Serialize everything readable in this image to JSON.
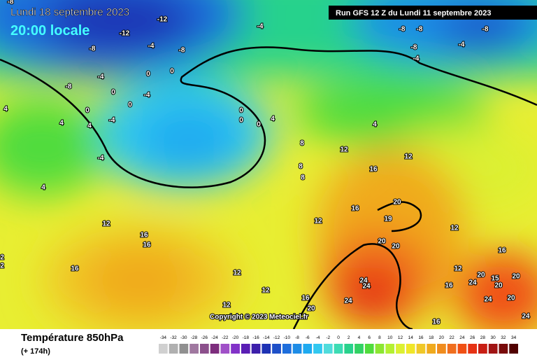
{
  "header": {
    "date": "Lundi 18 septembre 2023",
    "time": "20:00 locale",
    "run": "Run GFS 12 Z du Lundi 11 septembre 2023"
  },
  "footer": {
    "title": "Température 850hPa",
    "lead": "(+ 174h)",
    "copyright": "Copyright © 2023 Meteociel.fr"
  },
  "legend": {
    "ticks": [
      -34,
      -32,
      -30,
      -28,
      -26,
      -24,
      -22,
      -20,
      -18,
      -16,
      -14,
      -12,
      -10,
      -8,
      -6,
      -4,
      -2,
      0,
      2,
      4,
      6,
      8,
      10,
      12,
      14,
      16,
      18,
      20,
      22,
      24,
      26,
      28,
      30,
      32,
      34
    ],
    "colors": [
      "#d0d0d0",
      "#b0b0b0",
      "#909090",
      "#a078a0",
      "#8c508c",
      "#7d2d7d",
      "#a050c8",
      "#8232c8",
      "#5a1eb4",
      "#3c1eaa",
      "#1e32b4",
      "#1e50c8",
      "#1e6edc",
      "#1e8ce6",
      "#1eaaf0",
      "#32c8f0",
      "#50dcdc",
      "#3cdcb4",
      "#28d28c",
      "#32d264",
      "#50dc3c",
      "#8ce632",
      "#b4f032",
      "#dcf032",
      "#f0e628",
      "#f0c828",
      "#f0aa1e",
      "#f08c1e",
      "#f06e1e",
      "#f05014",
      "#e63214",
      "#c81e14",
      "#a01414",
      "#780a0a",
      "#500000"
    ]
  },
  "map": {
    "labels": [
      -8,
      -12,
      -12,
      -8,
      -4,
      -8,
      -4,
      -8,
      -8,
      -8,
      -8,
      -4,
      -4,
      -4,
      0,
      0,
      -8,
      0,
      -4,
      0,
      0,
      -4,
      4,
      4,
      4,
      0,
      0,
      0,
      4,
      4,
      8,
      12,
      12,
      16,
      8,
      8,
      4,
      -4,
      20,
      16,
      19,
      12,
      12,
      16,
      16,
      12,
      20,
      20,
      16,
      16,
      12,
      12,
      20,
      15,
      24,
      24,
      24,
      16,
      20,
      20,
      12,
      24,
      20,
      12,
      16,
      24,
      20,
      24,
      16,
      2,
      2
    ]
  }
}
